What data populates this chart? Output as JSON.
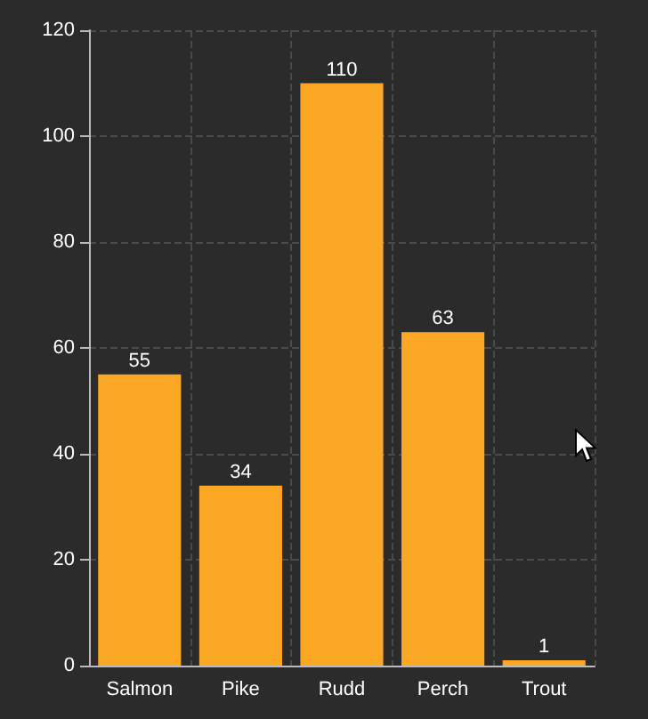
{
  "chart_data": {
    "type": "bar",
    "categories": [
      "Salmon",
      "Pike",
      "Rudd",
      "Perch",
      "Trout"
    ],
    "values": [
      55,
      34,
      110,
      63,
      1
    ],
    "color": "#fca724",
    "ylim": [
      0,
      120
    ],
    "yticks": [
      0,
      20,
      40,
      60,
      80,
      100,
      120
    ],
    "grid": true,
    "data_labels": true
  }
}
